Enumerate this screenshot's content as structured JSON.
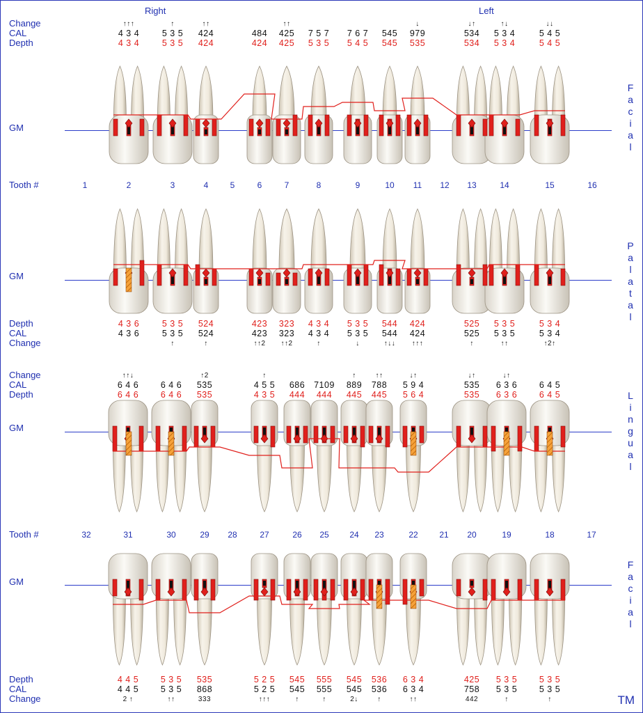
{
  "headers": {
    "right": "Right",
    "left": "Left",
    "tm": "TM"
  },
  "row_labels": {
    "change": "Change",
    "cal": "CAL",
    "depth": "Depth",
    "gm": "GM",
    "tooth": "Tooth #"
  },
  "side_labels": {
    "facial_upper": "Facial",
    "palatal": "Palatal",
    "lingual": "Lingual",
    "facial_lower": "Facial"
  },
  "upper_teeth": [
    "1",
    "2",
    "3",
    "4",
    "5",
    "6",
    "7",
    "8",
    "9",
    "10",
    "11",
    "12",
    "13",
    "14",
    "15",
    "16"
  ],
  "lower_teeth": [
    "32",
    "31",
    "30",
    "29",
    "28",
    "27",
    "26",
    "25",
    "24",
    "23",
    "22",
    "21",
    "20",
    "19",
    "18",
    "17"
  ],
  "upper_facial": {
    "change": [
      "",
      "↑↑↑",
      "↑",
      "↑↑",
      "",
      "",
      "↑↑",
      "",
      "",
      "",
      "↓",
      "",
      "↓↑",
      "↑↓",
      "↓↓",
      ""
    ],
    "cal": [
      "",
      "4 3 4",
      "5 3 5",
      "424",
      "",
      "484",
      "425",
      "7 5 7",
      "7 6 7",
      "545",
      "979",
      "",
      "534",
      "5 3 4",
      "5 4 5",
      ""
    ],
    "depth": [
      "",
      "4 3 4",
      "5 3 5",
      "424",
      "",
      "424",
      "425",
      "5 3 5",
      "5 4 5",
      "545",
      "535",
      "",
      "534",
      "5 3 4",
      "5 4 5",
      ""
    ]
  },
  "upper_palatal": {
    "depth": [
      "",
      "4 3 6",
      "5 3 5",
      "524",
      "",
      "423",
      "323",
      "4 3 4",
      "5 3 5",
      "544",
      "424",
      "",
      "525",
      "5 3 5",
      "5 3 4",
      ""
    ],
    "cal": [
      "",
      "4 3 6",
      "5 3 5",
      "524",
      "",
      "423",
      "323",
      "4 3 4",
      "5 3 5",
      "544",
      "424",
      "",
      "525",
      "5 3 5",
      "5 3 4",
      ""
    ],
    "change": [
      "",
      "",
      "↑",
      "↑",
      "",
      "↑↑2",
      "↑↑2",
      "↑",
      "↓",
      "↑↓↓",
      "↑↑↑",
      "",
      "↑",
      "↑↑",
      "↑2↑",
      ""
    ]
  },
  "lower_lingual": {
    "change": [
      "",
      "↑↑↓",
      "",
      "↑2",
      "",
      "↑",
      "",
      "",
      "↑",
      "↑↑",
      "↓↑",
      "",
      "↓↑",
      "↓↑",
      "",
      ""
    ],
    "cal": [
      "",
      "6 4 6",
      "6 4 6",
      "535",
      "",
      "4 5 5",
      "686",
      "7109",
      "889",
      "788",
      "5 9 4",
      "",
      "535",
      "6 3 6",
      "6 4 5",
      ""
    ],
    "depth": [
      "",
      "6 4 6",
      "6 4 6",
      "535",
      "",
      "4 3 5",
      "444",
      "444",
      "445",
      "445",
      "5 6 4",
      "",
      "535",
      "6 3 6",
      "6 4 5",
      ""
    ]
  },
  "lower_facial": {
    "depth": [
      "",
      "4 4 5",
      "5 3 5",
      "535",
      "",
      "5 2 5",
      "545",
      "555",
      "545",
      "536",
      "6 3 4",
      "",
      "425",
      "5 3 5",
      "5 3 5",
      ""
    ],
    "cal": [
      "",
      "4 4 5",
      "5 3 5",
      "868",
      "",
      "5 2 5",
      "545",
      "555",
      "545",
      "536",
      "6 3 4",
      "",
      "758",
      "5 3 5",
      "5 3 5",
      ""
    ],
    "change": [
      "",
      "2 ↑",
      "↑↑",
      "333",
      "",
      "↑↑↑",
      "↑",
      "↑",
      "2↓",
      "↑",
      "↑↑",
      "",
      "442",
      "↑",
      "↑",
      ""
    ]
  },
  "colors": {
    "blue": "#1f2fb0",
    "red": "#e0201c",
    "green": "#1fae2a",
    "orange": "#f08a1c",
    "pocket": "#a9cdec"
  }
}
